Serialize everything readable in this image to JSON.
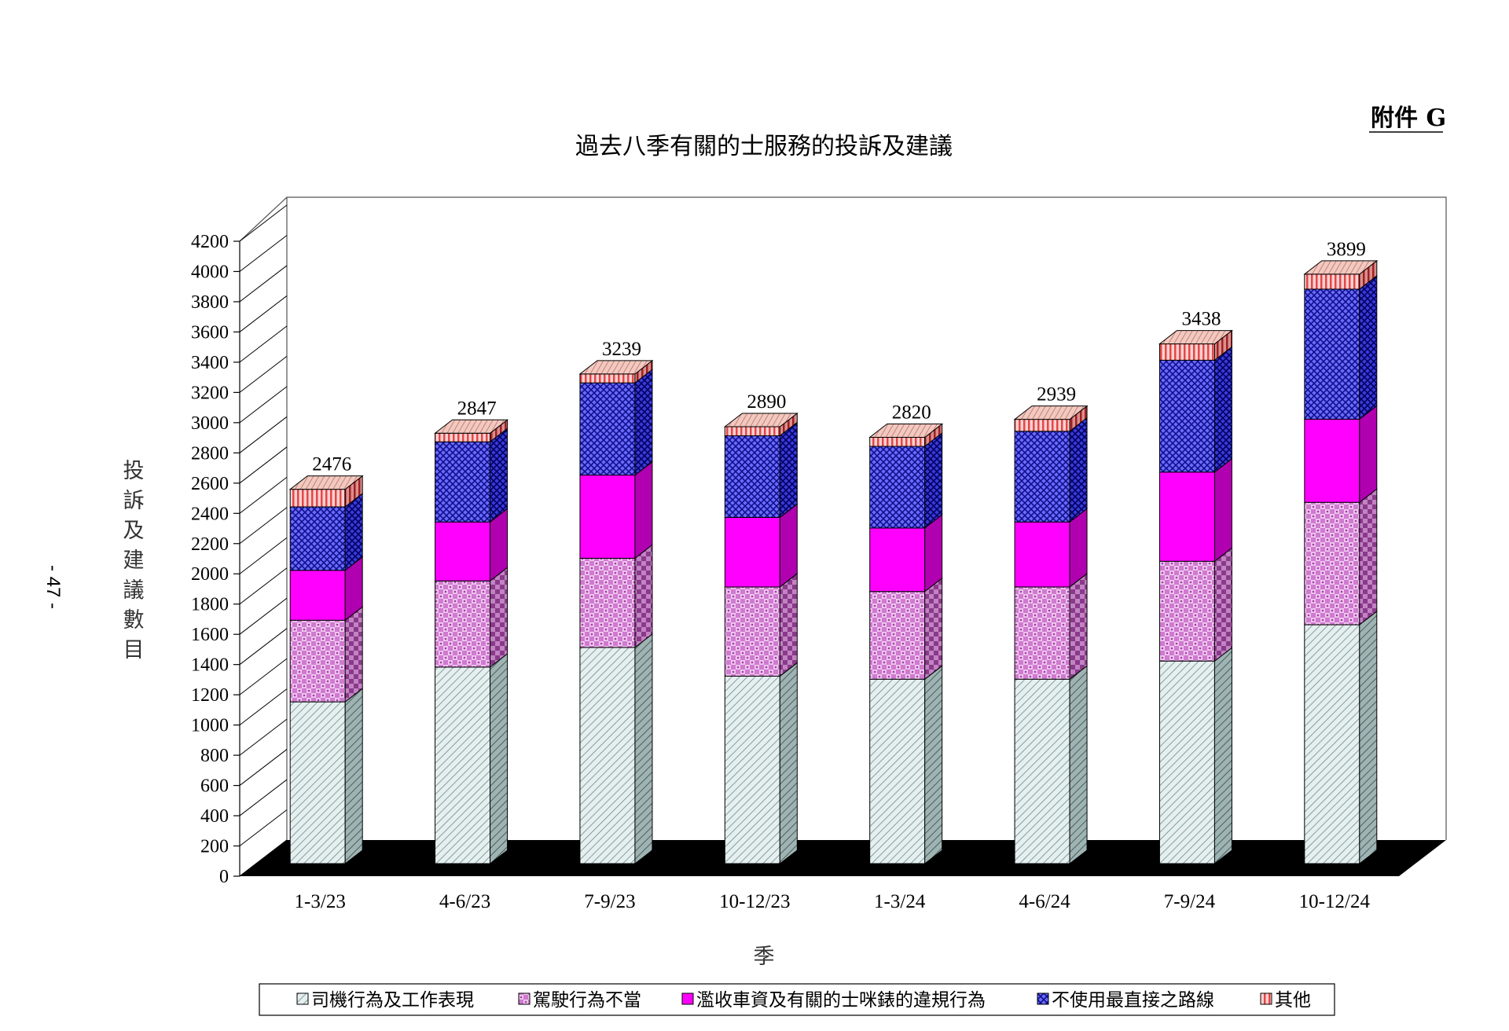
{
  "annex_label": "附件 G",
  "page_number": "- 47 -",
  "chart_data": {
    "type": "bar",
    "stacked": true,
    "title": "過去八季有關的士服務的投訴及建議",
    "xlabel": "季",
    "ylabel": "投訴及建議數目",
    "ylim": [
      0,
      4200
    ],
    "yticks": [
      "0",
      "200",
      "400",
      "600",
      "800",
      "1000",
      "1200",
      "1400",
      "1600",
      "1800",
      "2000",
      "2200",
      "2400",
      "2600",
      "2800",
      "3000",
      "3200",
      "3400",
      "3600",
      "3800",
      "4000",
      "4200"
    ],
    "categories": [
      "1-3/23",
      "4-6/23",
      "7-9/23",
      "10-12/23",
      "1-3/24",
      "4-6/24",
      "7-9/24",
      "10-12/24"
    ],
    "totals": [
      "2476",
      "2847",
      "3239",
      "2890",
      "2820",
      "2939",
      "3438",
      "3899"
    ],
    "legend_position": "bottom",
    "series": [
      {
        "name": "司機行為及工作表現",
        "values": [
          1070,
          1300,
          1430,
          1240,
          1220,
          1220,
          1340,
          1580
        ],
        "color": "#d9e6e6",
        "pattern": "diagonal-hatch"
      },
      {
        "name": "駕駛行為不當",
        "values": [
          540,
          570,
          590,
          590,
          580,
          610,
          660,
          810
        ],
        "color": "#e6a8e6",
        "pattern": "checker"
      },
      {
        "name": "濫收車資及有關的士咪錶的違規行為",
        "values": [
          330,
          390,
          550,
          460,
          420,
          430,
          590,
          550
        ],
        "color": "#ff00ff",
        "pattern": "solid"
      },
      {
        "name": "不使用最直接之路線",
        "values": [
          420,
          530,
          610,
          540,
          540,
          600,
          740,
          860
        ],
        "color": "#4040ff",
        "pattern": "crosshatch"
      },
      {
        "name": "其他",
        "values": [
          116,
          57,
          59,
          60,
          60,
          79,
          108,
          99
        ],
        "color": "#ffb0b0",
        "pattern": "vertical-stripe"
      }
    ]
  }
}
